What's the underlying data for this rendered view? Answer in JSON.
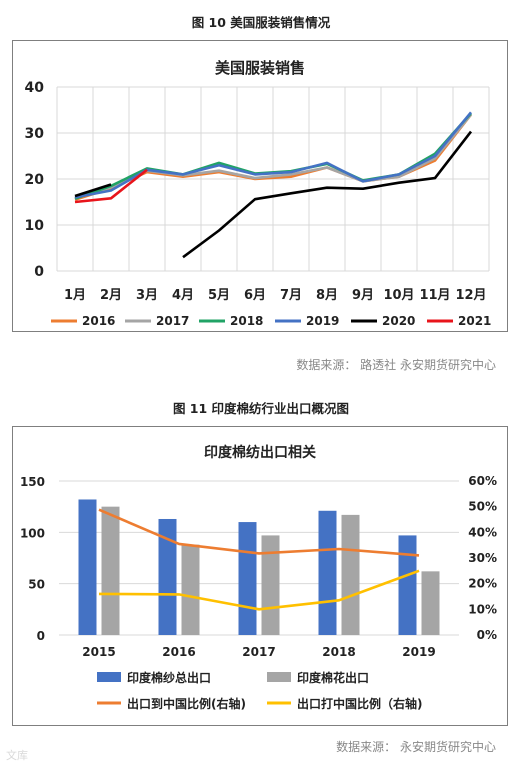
{
  "figure1": {
    "caption": "图 10  美国服装销售情况",
    "source": "数据来源：  路透社    永安期货研究中心"
  },
  "figure2": {
    "caption": "图 11  印度棉纺行业出口概况图",
    "source": "数据来源：   永安期货研究中心"
  },
  "watermark": "文库",
  "chart_data": [
    {
      "type": "line",
      "title": "美国服装销售",
      "categories": [
        "1月",
        "2月",
        "3月",
        "4月",
        "5月",
        "6月",
        "7月",
        "8月",
        "9月",
        "10月",
        "11月",
        "12月"
      ],
      "y_ticks": [
        "0",
        "10",
        "20",
        "30",
        "40"
      ],
      "ylim": [
        0,
        40
      ],
      "grid": true,
      "legend_position": "bottom",
      "series": [
        {
          "name": "2016",
          "color": "#ed7d31",
          "values": [
            15.5,
            18,
            21.5,
            20.5,
            21.5,
            20,
            20.5,
            22.5,
            19.5,
            20.5,
            24,
            34
          ]
        },
        {
          "name": "2017",
          "color": "#a5a5a5",
          "values": [
            15.8,
            18.2,
            21.8,
            20.8,
            21.8,
            20.2,
            21,
            22.5,
            19.5,
            20.5,
            24.5,
            34
          ]
        },
        {
          "name": "2018",
          "color": "#21a366",
          "values": [
            15.7,
            18.5,
            22.3,
            21,
            23.5,
            21.2,
            21.7,
            23.3,
            19.7,
            21,
            25.5,
            34.3
          ]
        },
        {
          "name": "2019",
          "color": "#4472c4",
          "values": [
            16,
            17.5,
            22,
            21,
            23,
            21,
            21.5,
            23.5,
            19.5,
            21,
            25,
            34.5
          ]
        },
        {
          "name": "2020",
          "color": "#000000",
          "values": [
            16.3,
            18.8,
            null,
            3,
            8.8,
            15.6,
            16.9,
            18.1,
            17.9,
            19.2,
            20.2,
            30.3
          ]
        },
        {
          "name": "2021",
          "color": "#e8141b",
          "values": [
            15,
            15.8,
            22,
            null,
            null,
            null,
            null,
            null,
            null,
            null,
            null,
            null
          ]
        }
      ]
    },
    {
      "type": "bar",
      "title": "印度棉纺出口相关",
      "categories": [
        "2015",
        "2016",
        "2017",
        "2018",
        "2019"
      ],
      "y_ticks": [
        "0",
        "50",
        "100",
        "150"
      ],
      "y2_ticks": [
        "0%",
        "10%",
        "20%",
        "30%",
        "40%",
        "50%",
        "60%"
      ],
      "ylim": [
        0,
        150
      ],
      "y2lim": [
        0,
        0.6
      ],
      "grid": true,
      "legend_position": "bottom",
      "bar_series": [
        {
          "name": "印度棉纱总出口",
          "color": "#4472c4",
          "values": [
            132,
            113,
            110,
            121,
            97
          ]
        },
        {
          "name": "印度棉花出口",
          "color": "#a5a5a5",
          "values": [
            125,
            88,
            97,
            117,
            62
          ]
        }
      ],
      "line_series": [
        {
          "name": "出口到中国比例(右轴)",
          "color": "#ed7d31",
          "values": [
            0.488,
            0.355,
            0.318,
            0.335,
            0.31
          ]
        },
        {
          "name": "出口打中国比例（右轴)",
          "color": "#ffc000",
          "values": [
            0.16,
            0.158,
            0.1,
            0.135,
            0.25
          ]
        }
      ]
    }
  ]
}
